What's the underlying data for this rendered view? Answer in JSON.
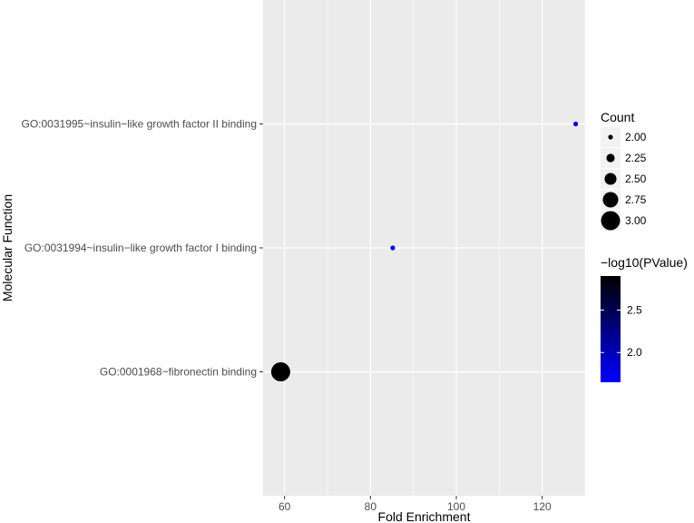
{
  "chart_data": {
    "type": "scatter",
    "title": "",
    "xlabel": "Fold Enrichment",
    "ylabel": "Molecular Function",
    "xlim": [
      55,
      130
    ],
    "x_ticks": [
      60,
      80,
      100,
      120
    ],
    "x_tick_labels": [
      "60",
      "80",
      "100",
      "120"
    ],
    "categories": [
      "GO:0001968~fibronectin binding",
      "GO:0031994~insulin−like growth factor I binding",
      "GO:0031995~insulin−like growth factor II binding"
    ],
    "points": [
      {
        "category": "GO:0001968~fibronectin binding",
        "x": 59.1,
        "count": 3,
        "neg_log10_pvalue": 2.9
      },
      {
        "category": "GO:0031994~insulin−like growth factor I binding",
        "x": 85.2,
        "count": 2,
        "neg_log10_pvalue": 1.65
      },
      {
        "category": "GO:0031995~insulin−like growth factor II binding",
        "x": 127.8,
        "count": 2,
        "neg_log10_pvalue": 1.65
      }
    ],
    "grid": true,
    "size_legend": {
      "title": "Count",
      "values": [
        2.0,
        2.25,
        2.5,
        2.75,
        3.0
      ],
      "labels": [
        "2.00",
        "2.25",
        "2.50",
        "2.75",
        "3.00"
      ]
    },
    "color_legend": {
      "title": "−log10(PValue)",
      "range": [
        1.65,
        2.9
      ],
      "ticks": [
        2.0,
        2.5
      ],
      "tick_labels": [
        "2.0",
        "2.5"
      ],
      "low_color": "#0000ff",
      "high_color": "#000000"
    },
    "legend_position": "right",
    "panel_background": "#ebebeb",
    "grid_color": "#ffffff"
  }
}
